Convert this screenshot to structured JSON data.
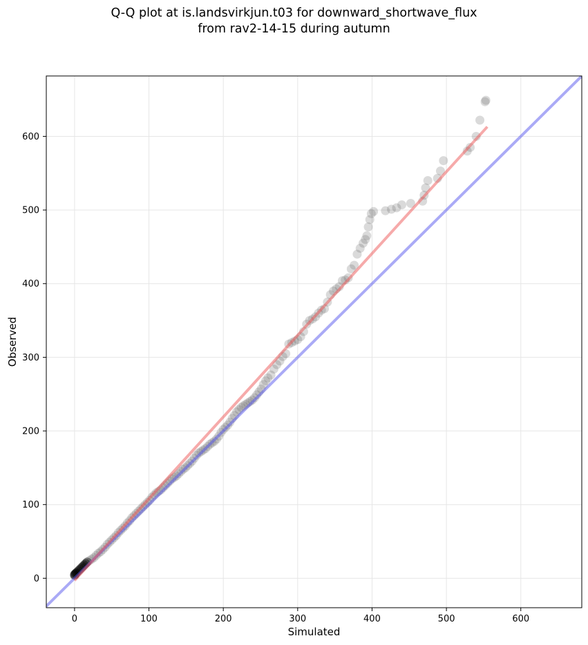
{
  "chart_data": {
    "type": "scatter",
    "title_line1": "Q-Q plot at is.landsvirkjun.t03 for downward_shortwave_flux",
    "title_line2": "from rav2-14-15 during autumn",
    "xlabel": "Simulated",
    "ylabel": "Observed",
    "xlim": [
      -38,
      682
    ],
    "ylim": [
      -40,
      682
    ],
    "xticks": [
      0,
      100,
      200,
      300,
      400,
      500,
      600
    ],
    "yticks": [
      0,
      100,
      200,
      300,
      400,
      500,
      600
    ],
    "grid": true,
    "colors": {
      "points": "#555555",
      "identity_line": "#5555ee",
      "fit_line": "#ee5555"
    },
    "identity_line": {
      "name": "1:1 line",
      "x": [
        -38,
        682
      ],
      "y": [
        -38,
        682
      ]
    },
    "fit_line": {
      "name": "fit",
      "x": [
        0,
        555
      ],
      "y": [
        -3,
        613
      ]
    },
    "points": [
      [
        0,
        4
      ],
      [
        0,
        5
      ],
      [
        1,
        6
      ],
      [
        2,
        7
      ],
      [
        3,
        8
      ],
      [
        5,
        10
      ],
      [
        7,
        12
      ],
      [
        9,
        14
      ],
      [
        11,
        16
      ],
      [
        13,
        18
      ],
      [
        15,
        20
      ],
      [
        17,
        22
      ],
      [
        20,
        24
      ],
      [
        23,
        26
      ],
      [
        26,
        28
      ],
      [
        29,
        31
      ],
      [
        32,
        34
      ],
      [
        35,
        36
      ],
      [
        38,
        39
      ],
      [
        41,
        42
      ],
      [
        44,
        46
      ],
      [
        47,
        49
      ],
      [
        50,
        52
      ],
      [
        53,
        55
      ],
      [
        56,
        58
      ],
      [
        59,
        62
      ],
      [
        62,
        65
      ],
      [
        65,
        68
      ],
      [
        68,
        71
      ],
      [
        71,
        75
      ],
      [
        74,
        78
      ],
      [
        77,
        82
      ],
      [
        80,
        85
      ],
      [
        83,
        88
      ],
      [
        86,
        91
      ],
      [
        89,
        94
      ],
      [
        92,
        97
      ],
      [
        95,
        100
      ],
      [
        98,
        103
      ],
      [
        101,
        106
      ],
      [
        104,
        110
      ],
      [
        107,
        113
      ],
      [
        110,
        116
      ],
      [
        113,
        118
      ],
      [
        116,
        120
      ],
      [
        119,
        123
      ],
      [
        122,
        126
      ],
      [
        125,
        129
      ],
      [
        128,
        132
      ],
      [
        131,
        135
      ],
      [
        134,
        137
      ],
      [
        137,
        139
      ],
      [
        140,
        142
      ],
      [
        143,
        145
      ],
      [
        146,
        148
      ],
      [
        149,
        150
      ],
      [
        152,
        153
      ],
      [
        155,
        156
      ],
      [
        158,
        159
      ],
      [
        161,
        163
      ],
      [
        164,
        167
      ],
      [
        167,
        170
      ],
      [
        170,
        172
      ],
      [
        173,
        174
      ],
      [
        176,
        176
      ],
      [
        179,
        179
      ],
      [
        182,
        182
      ],
      [
        185,
        184
      ],
      [
        188,
        186
      ],
      [
        191,
        189
      ],
      [
        194,
        193
      ],
      [
        197,
        198
      ],
      [
        200,
        202
      ],
      [
        203,
        205
      ],
      [
        206,
        208
      ],
      [
        209,
        212
      ],
      [
        212,
        217
      ],
      [
        215,
        221
      ],
      [
        218,
        226
      ],
      [
        221,
        229
      ],
      [
        224,
        232
      ],
      [
        227,
        234
      ],
      [
        230,
        236
      ],
      [
        233,
        238
      ],
      [
        236,
        240
      ],
      [
        239,
        242
      ],
      [
        242,
        245
      ],
      [
        245,
        249
      ],
      [
        248,
        253
      ],
      [
        251,
        257
      ],
      [
        254,
        263
      ],
      [
        257,
        268
      ],
      [
        260,
        272
      ],
      [
        264,
        276
      ],
      [
        268,
        284
      ],
      [
        272,
        290
      ],
      [
        276,
        295
      ],
      [
        280,
        301
      ],
      [
        284,
        305
      ],
      [
        288,
        318
      ],
      [
        292,
        320
      ],
      [
        296,
        322
      ],
      [
        300,
        324
      ],
      [
        304,
        328
      ],
      [
        308,
        335
      ],
      [
        312,
        345
      ],
      [
        316,
        350
      ],
      [
        320,
        352
      ],
      [
        324,
        355
      ],
      [
        328,
        360
      ],
      [
        332,
        364
      ],
      [
        336,
        366
      ],
      [
        340,
        375
      ],
      [
        344,
        385
      ],
      [
        348,
        390
      ],
      [
        352,
        393
      ],
      [
        356,
        396
      ],
      [
        360,
        404
      ],
      [
        364,
        405
      ],
      [
        368,
        408
      ],
      [
        372,
        420
      ],
      [
        376,
        425
      ],
      [
        380,
        440
      ],
      [
        384,
        448
      ],
      [
        388,
        455
      ],
      [
        391,
        460
      ],
      [
        393,
        465
      ],
      [
        395,
        477
      ],
      [
        397,
        487
      ],
      [
        399,
        495
      ],
      [
        402,
        498
      ],
      [
        418,
        499
      ],
      [
        426,
        501
      ],
      [
        433,
        503
      ],
      [
        440,
        507
      ],
      [
        452,
        509
      ],
      [
        468,
        512
      ],
      [
        470,
        520
      ],
      [
        472,
        530
      ],
      [
        475,
        540
      ],
      [
        488,
        543
      ],
      [
        492,
        553
      ],
      [
        496,
        567
      ],
      [
        528,
        580
      ],
      [
        532,
        585
      ],
      [
        540,
        600
      ],
      [
        545,
        622
      ],
      [
        552,
        647
      ],
      [
        553,
        649
      ]
    ]
  }
}
